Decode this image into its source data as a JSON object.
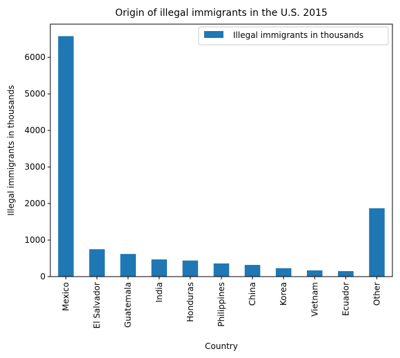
{
  "chart_data": {
    "type": "bar",
    "title": "Origin of illegal immigrants in the U.S. 2015",
    "xlabel": "Country",
    "ylabel": "Illegal immigrants in thousands",
    "categories": [
      "Mexico",
      "El Salvador",
      "Guatemala",
      "India",
      "Honduras",
      "Philippines",
      "China",
      "Korea",
      "Vietnam",
      "Ecuador",
      "Other"
    ],
    "series": [
      {
        "name": "Illegal immigrants in thousands",
        "color": "#1f77b4",
        "values": [
          6580,
          750,
          620,
          470,
          440,
          360,
          320,
          230,
          170,
          150,
          1870
        ]
      }
    ],
    "ylim": [
      0,
      6909
    ],
    "yticks": [
      0,
      1000,
      2000,
      3000,
      4000,
      5000,
      6000
    ],
    "grid": false,
    "legend_position": "top-right"
  }
}
